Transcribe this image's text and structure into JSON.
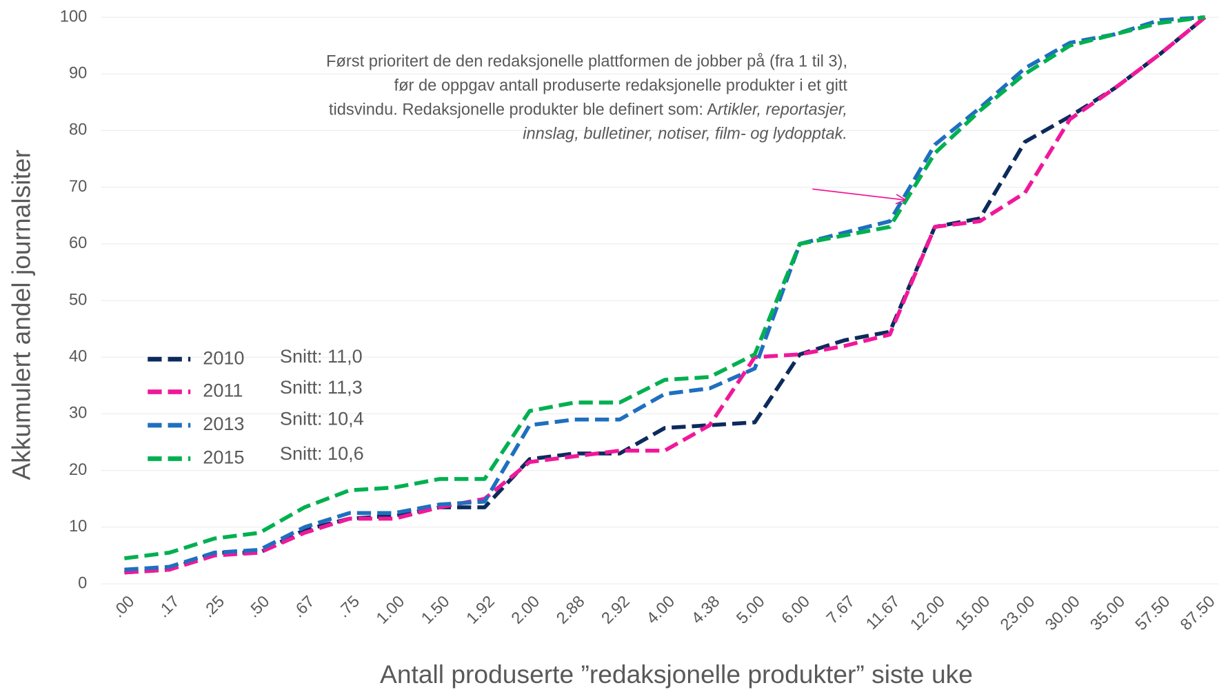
{
  "chart_data": {
    "type": "line",
    "xlabel": "Antall produserte ”redaksjonelle produkter” siste uke",
    "ylabel": "Akkumulert andel journalsiter",
    "categories": [
      ".00",
      ".17",
      ".25",
      ".50",
      ".67",
      ".75",
      "1.00",
      "1.50",
      "1.92",
      "2.00",
      "2.88",
      "2.92",
      "4.00",
      "4.38",
      "5.00",
      "6.00",
      "7.67",
      "11.67",
      "12.00",
      "15.00",
      "23.00",
      "30.00",
      "35.00",
      "57.50",
      "87.50"
    ],
    "series": [
      {
        "name": "2010",
        "color": "#0d2a5c",
        "values": [
          2,
          2.5,
          5.5,
          5.5,
          9.5,
          11.5,
          12,
          13.5,
          13.5,
          22,
          23,
          23,
          27.5,
          28,
          28.5,
          40.5,
          43,
          44.5,
          63,
          64.5,
          78,
          82.5,
          87.5,
          93.5,
          100
        ]
      },
      {
        "name": "2011",
        "color": "#f0189a",
        "values": [
          2,
          2.5,
          5,
          5.5,
          9,
          11.5,
          11.5,
          13.5,
          15,
          21.5,
          22.5,
          23.5,
          23.5,
          28,
          40,
          40.5,
          42,
          44,
          63,
          64,
          69,
          82,
          87.5,
          93.5,
          100
        ]
      },
      {
        "name": "2013",
        "color": "#1f6fbf",
        "values": [
          2.5,
          3,
          5.5,
          6,
          10,
          12.5,
          12.5,
          14,
          14.5,
          28,
          29,
          29,
          33.5,
          34.5,
          38,
          60,
          62,
          64,
          77.5,
          84,
          91,
          95.5,
          97,
          99.5,
          100
        ]
      },
      {
        "name": "2015",
        "color": "#00b050",
        "values": [
          4.5,
          5.5,
          8,
          9,
          13.5,
          16.5,
          17,
          18.5,
          18.5,
          30.5,
          32,
          32,
          36,
          36.5,
          40.5,
          60,
          61.5,
          63,
          76,
          83.5,
          90,
          95,
          97,
          99,
          100
        ]
      }
    ],
    "legend_notes": [
      "Snitt:  11,0",
      "Snitt:  11,3",
      "Snitt:  10,4",
      "Snitt:  10,6"
    ],
    "annotation": [
      [
        {
          "text": "Først prioritert de den redaksjonelle plattformen de jobber på (fra 1 til 3),",
          "italic": false
        }
      ],
      [
        {
          "text": "før de oppgav antall produserte redaksjonelle produkter i et gitt",
          "italic": false
        }
      ],
      [
        {
          "text": "tidsvindu.  Redaksjonelle produkter ble definert som: A",
          "italic": false
        },
        {
          "text": "rtikler, reportasjer,",
          "italic": true
        }
      ],
      [
        {
          "text": "innslag, bulletiner, notiser, film- og lydopptak.",
          "italic": true
        }
      ]
    ],
    "annotation_color": "#f0189a",
    "ylim": [
      0,
      100
    ],
    "yticks": [
      0,
      10,
      20,
      30,
      40,
      50,
      60,
      70,
      80,
      90,
      100
    ],
    "grid": true
  }
}
